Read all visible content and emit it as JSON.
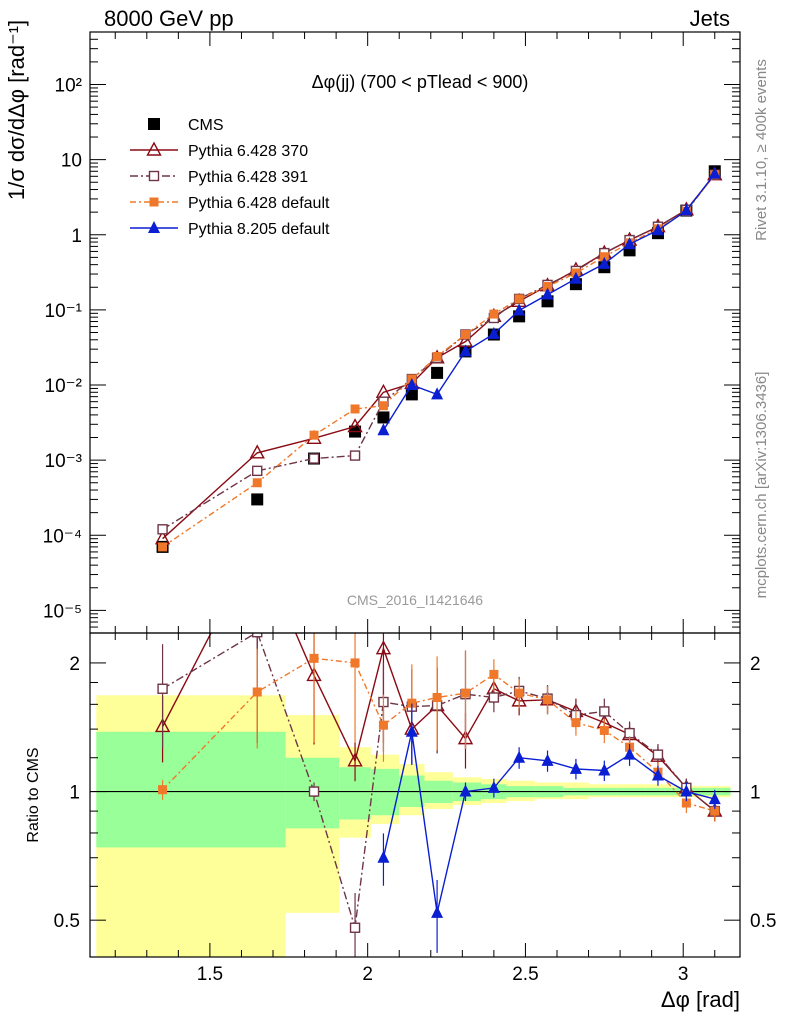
{
  "header": {
    "left": "8000 GeV pp",
    "right": "Jets",
    "side_top": "Rivet 3.1.10, ≥ 400k events",
    "side_bottom": "mcplots.cern.ch [arXiv:1306.3436]",
    "watermark": "CMS_2016_I1421646"
  },
  "chart_data": [
    {
      "type": "line",
      "panel": "main",
      "title": "Δφ(jj) (700 < pTlead <  900)",
      "ylabel": "1/σ dσ/dΔφ [rad⁻¹]",
      "yscale": "log",
      "ylim": [
        5e-06,
        500
      ],
      "xlim": [
        1.12,
        3.18
      ],
      "x_ticks": [
        "1.5",
        "2",
        "2.5",
        "3"
      ],
      "y_ticks": [
        "10⁻⁵",
        "10⁻⁴",
        "10⁻³",
        "10⁻²",
        "10⁻¹",
        "1",
        "10",
        "10²"
      ],
      "legend": [
        "CMS",
        "Pythia 6.428 370",
        "Pythia 6.428 391",
        "Pythia 6.428 default",
        "Pythia 8.205 default"
      ],
      "x": [
        1.35,
        1.65,
        1.83,
        1.96,
        2.05,
        2.14,
        2.22,
        2.31,
        2.4,
        2.48,
        2.57,
        2.66,
        2.75,
        2.83,
        2.92,
        3.01,
        3.1
      ],
      "series": [
        {
          "name": "CMS",
          "color": "#000000",
          "marker": "square",
          "values": [
            7e-05,
            0.0003,
            0.00105,
            0.0024,
            0.0037,
            0.0075,
            0.0145,
            0.028,
            0.047,
            0.082,
            0.13,
            0.22,
            0.37,
            0.62,
            1.05,
            2.1,
            7.0
          ]
        },
        {
          "name": "Pythia 6.428 370",
          "color": "#8b0a14",
          "marker": "open-triangle",
          "values": [
            9e-05,
            0.00125,
            0.00195,
            0.0028,
            0.008,
            0.0105,
            0.023,
            0.038,
            0.082,
            0.13,
            0.21,
            0.34,
            0.57,
            0.85,
            1.28,
            2.15,
            6.3
          ]
        },
        {
          "name": "Pythia 6.428 391",
          "color": "#6e3546",
          "marker": "open-square",
          "values": [
            0.00012,
            0.00072,
            0.00105,
            0.00115,
            0.006,
            0.012,
            0.023,
            0.047,
            0.078,
            0.14,
            0.215,
            0.33,
            0.57,
            0.85,
            1.28,
            2.15,
            6.3
          ]
        },
        {
          "name": "Pythia 6.428 default",
          "color": "#f0782a",
          "marker": "filled-square",
          "values": [
            7e-05,
            0.0005,
            0.00215,
            0.0048,
            0.0053,
            0.012,
            0.024,
            0.047,
            0.088,
            0.14,
            0.205,
            0.31,
            0.51,
            0.78,
            1.2,
            2.05,
            6.3
          ]
        },
        {
          "name": "Pythia 8.205 default",
          "color": "#0a1ed2",
          "marker": "filled-triangle",
          "values": [
            null,
            null,
            null,
            null,
            0.0025,
            0.01,
            0.0075,
            0.028,
            0.048,
            0.098,
            0.16,
            0.26,
            0.41,
            0.75,
            1.15,
            2.1,
            6.5
          ]
        }
      ]
    },
    {
      "type": "line",
      "panel": "ratio",
      "ylabel": "Ratio to CMS",
      "xlabel": "Δφ [rad]",
      "yscale": "log",
      "ylim": [
        0.41,
        2.35
      ],
      "y_ticks": [
        "0.5",
        "1",
        "2"
      ],
      "x": [
        1.35,
        1.65,
        1.83,
        1.96,
        2.05,
        2.14,
        2.22,
        2.31,
        2.4,
        2.48,
        2.57,
        2.66,
        2.75,
        2.83,
        2.92,
        3.01,
        3.1
      ],
      "bands": {
        "edges": [
          1.14,
          1.57,
          1.74,
          1.91,
          2.01,
          2.1,
          2.18,
          2.27,
          2.36,
          2.44,
          2.53,
          2.62,
          2.7,
          2.79,
          2.88,
          2.96,
          3.05,
          3.15
        ],
        "inner": [
          [
            0.74,
            1.38
          ],
          [
            0.74,
            1.38
          ],
          [
            0.82,
            1.2
          ],
          [
            0.86,
            1.14
          ],
          [
            0.88,
            1.13
          ],
          [
            0.92,
            1.09
          ],
          [
            0.94,
            1.06
          ],
          [
            0.95,
            1.05
          ],
          [
            0.96,
            1.04
          ],
          [
            0.97,
            1.03
          ],
          [
            0.97,
            1.03
          ],
          [
            0.98,
            1.02
          ],
          [
            0.98,
            1.02
          ],
          [
            0.98,
            1.02
          ],
          [
            0.98,
            1.02
          ],
          [
            0.98,
            1.02
          ],
          [
            0.98,
            1.02
          ]
        ],
        "outer": [
          [
            0.36,
            1.68
          ],
          [
            0.36,
            1.68
          ],
          [
            0.52,
            1.51
          ],
          [
            0.78,
            1.27
          ],
          [
            0.84,
            1.22
          ],
          [
            0.88,
            1.16
          ],
          [
            0.91,
            1.11
          ],
          [
            0.93,
            1.08
          ],
          [
            0.94,
            1.07
          ],
          [
            0.95,
            1.06
          ],
          [
            0.96,
            1.05
          ],
          [
            0.96,
            1.05
          ],
          [
            0.97,
            1.04
          ],
          [
            0.97,
            1.04
          ],
          [
            0.97,
            1.04
          ],
          [
            0.97,
            1.03
          ],
          [
            0.97,
            1.03
          ]
        ]
      },
      "series": [
        {
          "name": "Pythia 6.428 370",
          "values": [
            1.42,
            3.8,
            1.87,
            1.18,
            2.16,
            1.4,
            1.59,
            1.33,
            1.74,
            1.63,
            1.64,
            1.54,
            1.45,
            1.36,
            1.21,
            1.02,
            0.9
          ]
        },
        {
          "name": "Pythia 6.428 391",
          "values": [
            1.74,
            2.36,
            1.0,
            0.48,
            1.62,
            1.58,
            1.59,
            1.69,
            1.66,
            1.72,
            1.65,
            1.51,
            1.54,
            1.37,
            1.22,
            1.02,
            0.9
          ]
        },
        {
          "name": "Pythia 6.428 default",
          "values": [
            1.01,
            1.71,
            2.05,
            2.0,
            1.43,
            1.61,
            1.66,
            1.7,
            1.88,
            1.7,
            1.64,
            1.45,
            1.39,
            1.27,
            1.11,
            0.94,
            0.9
          ]
        },
        {
          "name": "Pythia 8.205 default",
          "values": [
            null,
            null,
            null,
            null,
            0.7,
            1.38,
            0.52,
            1.0,
            1.02,
            1.2,
            1.18,
            1.13,
            1.12,
            1.22,
            1.09,
            1.0,
            0.96
          ]
        }
      ]
    }
  ]
}
